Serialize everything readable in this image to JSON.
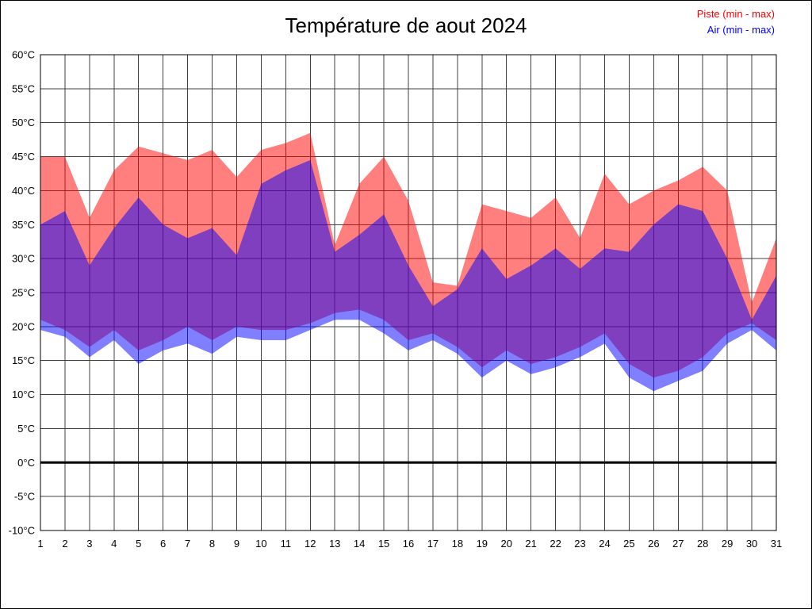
{
  "legend": {
    "piste_label": "Piste (min - max)",
    "air_label": "Air (min - max)"
  },
  "chart_data": {
    "type": "area",
    "title": "Température de aout 2024",
    "xlabel": "",
    "ylabel": "",
    "x": [
      1,
      2,
      3,
      4,
      5,
      6,
      7,
      8,
      9,
      10,
      11,
      12,
      13,
      14,
      15,
      16,
      17,
      18,
      19,
      20,
      21,
      22,
      23,
      24,
      25,
      26,
      27,
      28,
      29,
      30,
      31
    ],
    "ylim": [
      -10,
      60
    ],
    "ytick_step": 5,
    "ytick_suffix": "°C",
    "grid": true,
    "zero_line": true,
    "legend_position": "top-right",
    "series": [
      {
        "id": "piste",
        "name": "Piste (min - max)",
        "color": "#ff0000",
        "fill_opacity": 0.5,
        "max": [
          45,
          45,
          36,
          43,
          46.5,
          45.5,
          44.5,
          46,
          42,
          46,
          47,
          48.5,
          32,
          41,
          45,
          38.5,
          26.5,
          26,
          38,
          37,
          36,
          39,
          33,
          42.5,
          38,
          40,
          41.5,
          43.5,
          40,
          23.5,
          33
        ],
        "min": [
          21,
          19.5,
          17,
          19.5,
          16.5,
          18,
          20,
          18,
          20,
          19.5,
          19.5,
          20.5,
          22,
          22.5,
          21,
          18,
          19,
          17,
          14,
          16.5,
          14.5,
          15.5,
          17,
          19,
          14.5,
          12.5,
          13.5,
          15.5,
          19,
          20.5,
          18
        ]
      },
      {
        "id": "air",
        "name": "Air (min - max)",
        "color": "#0000ff",
        "fill_opacity": 0.5,
        "max": [
          35,
          37,
          29,
          34.5,
          39,
          35,
          33,
          34.5,
          30.5,
          41,
          43,
          44.5,
          31,
          33.5,
          36.5,
          29,
          23,
          25.5,
          31.5,
          27,
          29,
          31.5,
          28.5,
          31.5,
          31,
          35,
          38,
          37,
          30,
          21,
          27.5
        ],
        "min": [
          19.5,
          18.5,
          15.5,
          18,
          14.5,
          16.5,
          17.5,
          16,
          18.5,
          18,
          18,
          19.5,
          21,
          21,
          19,
          16.5,
          18,
          16,
          12.5,
          15,
          13,
          14,
          15.5,
          17.5,
          12.5,
          10.5,
          12,
          13.5,
          17.5,
          19.5,
          16.5
        ]
      }
    ]
  }
}
